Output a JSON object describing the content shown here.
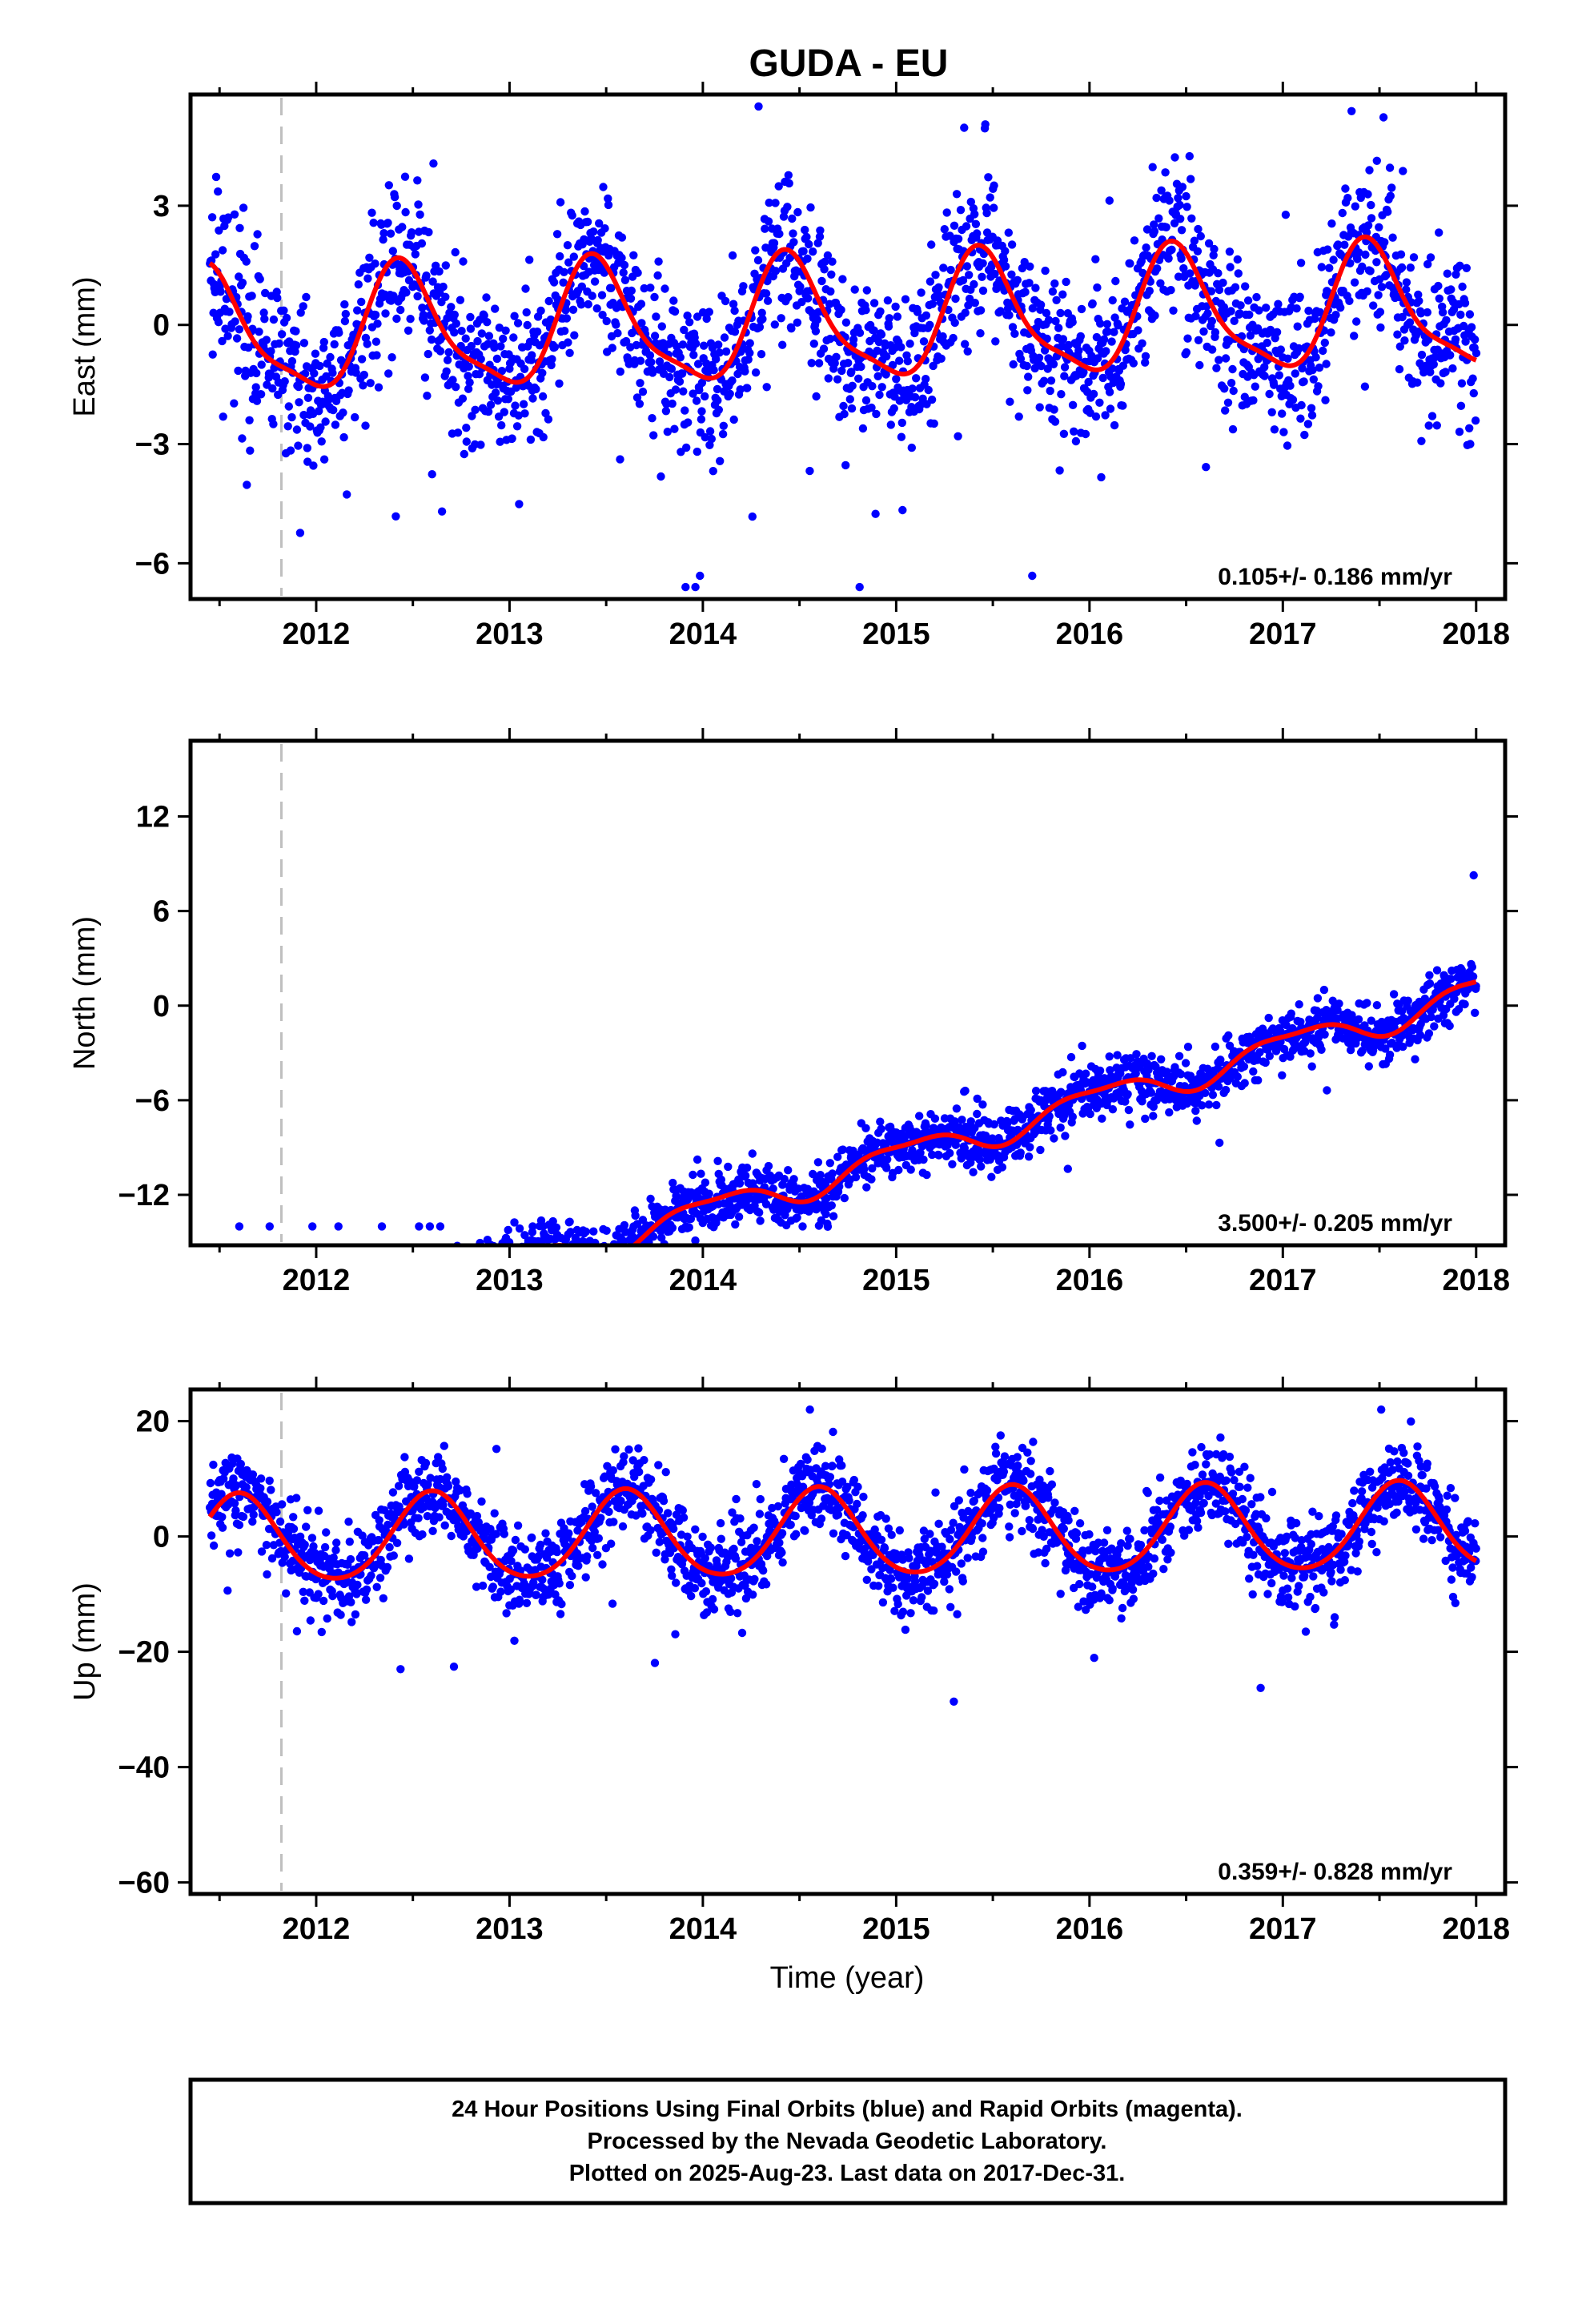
{
  "title": "GUDA - EU",
  "xlabel": "Time (year)",
  "footer": {
    "line1": "24 Hour Positions Using Final Orbits (blue) and Rapid Orbits (magenta).",
    "line2": "Processed by the Nevada Geodetic Laboratory.",
    "line3": "Plotted on 2025-Aug-23. Last data on 2017-Dec-31."
  },
  "colors": {
    "points": "#0000ff",
    "model": "#ff0000",
    "event_line": "#bfbfbf",
    "frame": "#000000"
  },
  "chart_data": [
    {
      "type": "scatter",
      "name": "east",
      "ylabel": "East (mm)",
      "xlim": [
        2011.35,
        2018.15
      ],
      "ylim": [
        -6.9,
        5.8
      ],
      "yticks": [
        3,
        0,
        -3,
        -6
      ],
      "ytick_labels": [
        "3",
        "0",
        "−3",
        "−6"
      ],
      "xticks": [
        2012,
        2013,
        2014,
        2015,
        2016,
        2017,
        2018
      ],
      "xtick_labels": [
        "2012",
        "2013",
        "2014",
        "2015",
        "2016",
        "2017",
        "2018"
      ],
      "event_x": 2011.82,
      "rate_label": "0.105+/- 0.186 mm/yr",
      "model": {
        "rate": 0.105,
        "offset": 0.1,
        "annual_amp": 1.5,
        "annual_peak": 0.45,
        "semi_amp": 0.4,
        "semi_peak": 0.4,
        "noise": 1.0,
        "outlier_range": [
          -6.6,
          5.5
        ]
      },
      "x_range": [
        2011.45,
        2018.0
      ],
      "series": [
        {
          "name": "Final Orbits (blue)"
        },
        {
          "name": "model"
        }
      ]
    },
    {
      "type": "scatter",
      "name": "north",
      "ylabel": "North (mm)",
      "xlim": [
        2011.35,
        2018.15
      ],
      "ylim": [
        -15.2,
        16.8
      ],
      "yticks": [
        12,
        6,
        0,
        -6,
        -12
      ],
      "ytick_labels": [
        "12",
        "6",
        "0",
        "−6",
        "−12"
      ],
      "xticks": [
        2012,
        2013,
        2014,
        2015,
        2016,
        2017,
        2018
      ],
      "xtick_labels": [
        "2012",
        "2013",
        "2014",
        "2015",
        "2016",
        "2017",
        "2018"
      ],
      "event_x": 2011.82,
      "rate_label": "3.500+/- 0.205 mm/yr",
      "model": {
        "rate": 3.5,
        "offset": -9.6,
        "annual_amp": 0.9,
        "annual_peak": 0.05,
        "semi_amp": 0.3,
        "semi_peak": 0.3,
        "noise": 0.9,
        "outlier_range": [
          -14,
          15
        ]
      },
      "x_range": [
        2011.45,
        2018.0
      ],
      "series": [
        {
          "name": "Final Orbits (blue)"
        },
        {
          "name": "model"
        }
      ]
    },
    {
      "type": "scatter",
      "name": "up",
      "ylabel": "Up (mm)",
      "xlim": [
        2011.35,
        2018.15
      ],
      "ylim": [
        -62,
        25.5
      ],
      "yticks": [
        20,
        0,
        -20,
        -40,
        -60
      ],
      "ytick_labels": [
        "20",
        "0",
        "−20",
        "−40",
        "−60"
      ],
      "xticks": [
        2012,
        2013,
        2014,
        2015,
        2016,
        2017,
        2018
      ],
      "xtick_labels": [
        "2012",
        "2013",
        "2014",
        "2015",
        "2016",
        "2017",
        "2018"
      ],
      "event_x": 2011.82,
      "rate_label": "0.359+/- 0.828 mm/yr",
      "model": {
        "rate": 0.359,
        "offset": 0.5,
        "annual_amp": 7.5,
        "annual_peak": 0.6,
        "semi_amp": 0.8,
        "semi_peak": 0.1,
        "noise": 3.8,
        "outlier_range": [
          -60,
          22
        ]
      },
      "x_range": [
        2011.45,
        2018.0
      ],
      "series": [
        {
          "name": "Final Orbits (blue)"
        },
        {
          "name": "model"
        }
      ]
    }
  ]
}
